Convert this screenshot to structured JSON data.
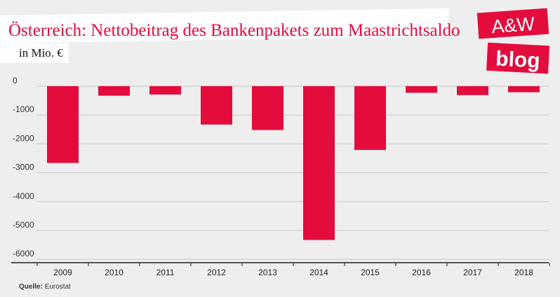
{
  "header": {
    "title": "Österreich: Nettobeitrag des Bankenpakets zum Maastrichtsaldo",
    "subtitle": "in Mio. €"
  },
  "logo": {
    "line1": "A&W",
    "line2": "blog",
    "color": "#e30c3d"
  },
  "source": {
    "label": "Quelle:",
    "value": "Eurostat"
  },
  "colors": {
    "bar": "#e30c3d",
    "grid": "#c8c8c8",
    "axis": "#222222"
  },
  "chart_data": {
    "type": "bar",
    "title": "Österreich: Nettobeitrag des Bankenpakets zum Maastrichtsaldo",
    "subtitle": "in Mio. €",
    "xlabel": "",
    "ylabel": "",
    "categories": [
      "2009",
      "2010",
      "2011",
      "2012",
      "2013",
      "2014",
      "2015",
      "2016",
      "2017",
      "2018"
    ],
    "values": [
      -2660,
      -330,
      -290,
      -1330,
      -1520,
      -5330,
      -2210,
      -230,
      -310,
      -210
    ],
    "ylim": [
      -6200,
      0
    ],
    "yticks": [
      0,
      -1000,
      -2000,
      -3000,
      -4000,
      -5000,
      -6000
    ],
    "ytick_labels": [
      "0",
      "-1000",
      "-2000",
      "-3000",
      "-4000",
      "-5000",
      "-6000"
    ],
    "grid": true,
    "legend": "none"
  }
}
